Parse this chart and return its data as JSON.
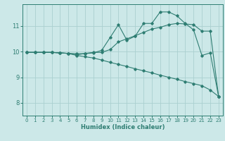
{
  "xlabel": "Humidex (Indice chaleur)",
  "bg_color": "#cce8e8",
  "line_color": "#2e7d72",
  "grid_color": "#aad0d0",
  "xlim": [
    -0.5,
    23.5
  ],
  "ylim": [
    7.5,
    11.85
  ],
  "yticks": [
    8,
    9,
    10,
    11
  ],
  "xticks": [
    0,
    1,
    2,
    3,
    4,
    5,
    6,
    7,
    8,
    9,
    10,
    11,
    12,
    13,
    14,
    15,
    16,
    17,
    18,
    19,
    20,
    21,
    22,
    23
  ],
  "line1_x": [
    0,
    1,
    2,
    3,
    4,
    5,
    6,
    7,
    8,
    9,
    10,
    11,
    12,
    13,
    14,
    15,
    16,
    17,
    18,
    19,
    20,
    21,
    22,
    23
  ],
  "line1_y": [
    9.97,
    9.97,
    9.97,
    9.97,
    9.95,
    9.93,
    9.92,
    9.92,
    9.95,
    10.05,
    10.55,
    11.05,
    10.45,
    10.6,
    11.1,
    11.1,
    11.55,
    11.55,
    11.4,
    11.1,
    10.85,
    9.85,
    9.95,
    8.25
  ],
  "line2_x": [
    0,
    1,
    2,
    3,
    4,
    5,
    6,
    7,
    8,
    9,
    10,
    11,
    12,
    13,
    14,
    15,
    16,
    17,
    18,
    19,
    20,
    21,
    22,
    23
  ],
  "line2_y": [
    9.97,
    9.97,
    9.97,
    9.97,
    9.95,
    9.93,
    9.87,
    9.93,
    9.97,
    9.97,
    10.08,
    10.38,
    10.5,
    10.62,
    10.75,
    10.88,
    10.95,
    11.05,
    11.1,
    11.08,
    11.05,
    10.8,
    10.8,
    8.25
  ],
  "line3_x": [
    0,
    1,
    2,
    3,
    4,
    5,
    6,
    7,
    8,
    9,
    10,
    11,
    12,
    13,
    14,
    15,
    16,
    17,
    18,
    19,
    20,
    21,
    22,
    23
  ],
  "line3_y": [
    9.97,
    9.97,
    9.97,
    9.97,
    9.95,
    9.93,
    9.85,
    9.8,
    9.75,
    9.67,
    9.58,
    9.5,
    9.42,
    9.33,
    9.25,
    9.17,
    9.08,
    9.0,
    8.92,
    8.83,
    8.75,
    8.67,
    8.5,
    8.25
  ]
}
